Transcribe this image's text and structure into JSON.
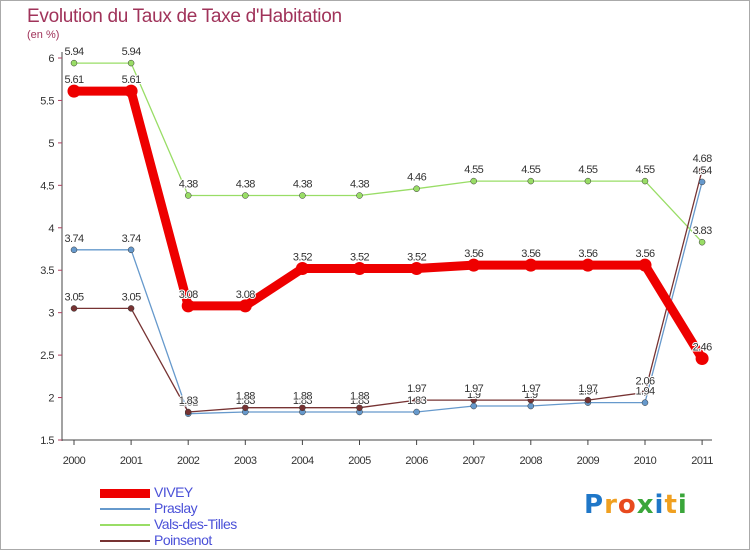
{
  "title": "Evolution du Taux de Taxe d'Habitation",
  "subtitle": "(en %)",
  "brand": {
    "letters": [
      {
        "ch": "P",
        "color": "#1f77c8"
      },
      {
        "ch": "r",
        "color": "#f0a020"
      },
      {
        "ch": "o",
        "color": "#e84a1e"
      },
      {
        "ch": "x",
        "color": "#3aa63a"
      },
      {
        "ch": "i",
        "color": "#1f77c8"
      },
      {
        "ch": "t",
        "color": "#f0a020"
      },
      {
        "ch": "i",
        "color": "#3aa63a"
      }
    ]
  },
  "chart_data": {
    "type": "line",
    "x": [
      "2000",
      "2001",
      "2002",
      "2003",
      "2004",
      "2005",
      "2006",
      "2007",
      "2008",
      "2009",
      "2010",
      "2011"
    ],
    "ylim": [
      1.5,
      6
    ],
    "yticks": [
      "1.5",
      "2",
      "2.5",
      "3",
      "3.5",
      "4",
      "4.5",
      "5",
      "5.5",
      "6"
    ],
    "grid": false,
    "legend": "bottom-left",
    "series": [
      {
        "name": "VIVEY",
        "color": "#ee0000",
        "width": 9,
        "values": [
          5.61,
          5.61,
          3.08,
          3.08,
          3.52,
          3.52,
          3.52,
          3.56,
          3.56,
          3.56,
          3.56,
          2.46
        ],
        "labels": [
          "5.61",
          "5.61",
          "3.08",
          "3.08",
          "3.52",
          "3.52",
          "3.52",
          "3.56",
          "3.56",
          "3.56",
          "3.56",
          "2.46"
        ]
      },
      {
        "name": "Praslay",
        "color": "#6699cc",
        "width": 1.3,
        "values": [
          3.74,
          3.74,
          1.81,
          1.83,
          1.83,
          1.83,
          1.83,
          1.9,
          1.9,
          1.94,
          1.94,
          4.54
        ],
        "labels": [
          "3.74",
          "3.74",
          "1.81",
          "1.83",
          "1.83",
          "1.83",
          "1.83",
          "1.9",
          "1.9",
          "1.94",
          "1.94",
          "4.54"
        ]
      },
      {
        "name": "Vals-des-Tilles",
        "color": "#99dd66",
        "width": 1.3,
        "values": [
          5.94,
          5.94,
          4.38,
          4.38,
          4.38,
          4.38,
          4.46,
          4.55,
          4.55,
          4.55,
          4.55,
          3.83
        ],
        "labels": [
          "5.94",
          "5.94",
          "4.38",
          "4.38",
          "4.38",
          "4.38",
          "4.46",
          "4.55",
          "4.55",
          "4.55",
          "4.55",
          "3.83"
        ]
      },
      {
        "name": "Poinsenot",
        "color": "#773333",
        "width": 1.3,
        "values": [
          3.05,
          3.05,
          1.83,
          1.88,
          1.88,
          1.88,
          1.97,
          1.97,
          1.97,
          1.97,
          2.06,
          4.68
        ],
        "labels": [
          "3.05",
          "3.05",
          "1.83",
          "1.88",
          "1.88",
          "1.88",
          "1.97",
          "1.97",
          "1.97",
          "1.97",
          "2.06",
          "4.68"
        ]
      }
    ]
  }
}
